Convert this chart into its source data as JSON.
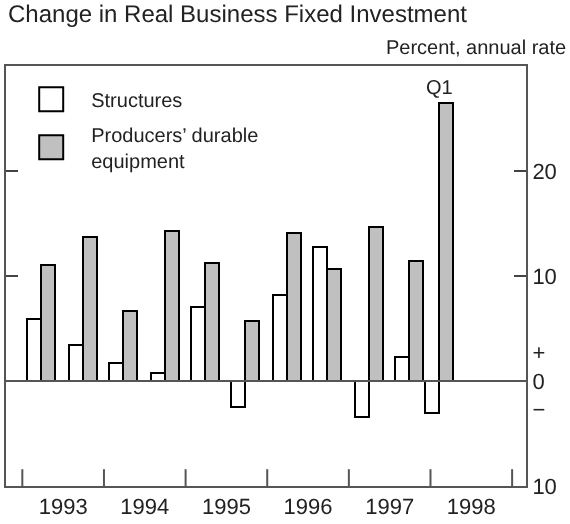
{
  "chart_data": {
    "type": "bar",
    "title": "Change in Real Business Fixed Investment",
    "ylabel": "Percent, annual rate",
    "x": [
      1993.25,
      1993.75,
      1994.25,
      1994.75,
      1995.25,
      1995.75,
      1996.25,
      1996.75,
      1997.25,
      1997.75,
      1998.125
    ],
    "series": [
      {
        "name": "Structures",
        "color": "#ffffff",
        "values": [
          5.8,
          3.4,
          1.7,
          0.7,
          7.0,
          -2.6,
          8.1,
          12.6,
          -3.5,
          2.1,
          -3.1
        ]
      },
      {
        "name": "Producers’ durable\nequipment",
        "color": "#c0c0c0",
        "values": [
          10.9,
          13.6,
          6.5,
          14.1,
          11.1,
          5.7,
          14.0,
          10.5,
          14.5,
          11.3,
          26.4
        ]
      }
    ],
    "annotations": [
      {
        "text": "Q1",
        "x": 1998.125,
        "y": 26.4
      }
    ],
    "xlim": [
      1992.8,
      1999.17
    ],
    "xticks": [
      {
        "value": 1993,
        "label": null
      },
      {
        "value": 1993.5,
        "label": "1993"
      },
      {
        "value": 1994,
        "label": null
      },
      {
        "value": 1994.5,
        "label": "1994"
      },
      {
        "value": 1995,
        "label": null
      },
      {
        "value": 1995.5,
        "label": "1995"
      },
      {
        "value": 1996,
        "label": null
      },
      {
        "value": 1996.5,
        "label": "1996"
      },
      {
        "value": 1997,
        "label": null
      },
      {
        "value": 1997.5,
        "label": "1997"
      },
      {
        "value": 1998,
        "label": null
      },
      {
        "value": 1998.5,
        "label": "1998"
      },
      {
        "value": 1999,
        "label": null
      }
    ],
    "ylim": [
      -10,
      30
    ],
    "yticks": [
      {
        "value": -10,
        "label": "10"
      },
      {
        "value": 0,
        "label": "+\n0\n−"
      },
      10,
      20
    ],
    "ref_lines": [
      {
        "axis": "y",
        "value": 0
      }
    ],
    "legend": "top left"
  }
}
